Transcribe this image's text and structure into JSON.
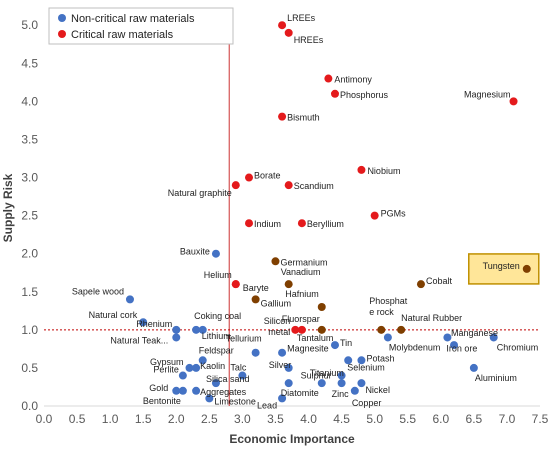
{
  "chart_data": {
    "type": "scatter",
    "xlabel": "Economic Importance",
    "ylabel": "Supply Risk",
    "xlim": [
      0.0,
      7.5
    ],
    "ylim": [
      0.0,
      5.2
    ],
    "x_ticks": [
      "0.0",
      "0.5",
      "1.0",
      "1.5",
      "2.0",
      "2.5",
      "3.0",
      "3.5",
      "4.0",
      "4.5",
      "5.0",
      "5.5",
      "6.0",
      "6.5",
      "7.0",
      "7.5"
    ],
    "y_ticks": [
      "0.0",
      "0.5",
      "1.0",
      "1.5",
      "2.0",
      "2.5",
      "3.0",
      "3.5",
      "4.0",
      "4.5",
      "5.0"
    ],
    "thresholds": {
      "x": 2.8,
      "y": 1.0
    },
    "grid": false,
    "legend_position": "top-left",
    "colors": {
      "Non-critical raw materials": "#4472c4",
      "Critical raw materials": "#e41a1c",
      "borderline": "#7f3f00",
      "highlight_fill": "#ffe699",
      "highlight_border": "#bf9000",
      "threshold": "#c00000"
    },
    "series": [
      {
        "name": "Non-critical raw materials",
        "points": [
          {
            "label": "Sapele wood",
            "x": 1.3,
            "y": 1.4
          },
          {
            "label": "Natural cork",
            "x": 1.5,
            "y": 1.1
          },
          {
            "label": "Rhenium",
            "x": 2.0,
            "y": 1.0
          },
          {
            "label": "Natural Teak...",
            "x": 2.0,
            "y": 0.9
          },
          {
            "label": "Coking coal",
            "x": 2.3,
            "y": 1.0
          },
          {
            "label": "Lithium",
            "x": 2.4,
            "y": 1.0
          },
          {
            "label": "Bauxite",
            "x": 2.6,
            "y": 2.0
          },
          {
            "label": "Feldspar",
            "x": 2.4,
            "y": 0.6
          },
          {
            "label": "Gypsum",
            "x": 2.2,
            "y": 0.5
          },
          {
            "label": "Perlite",
            "x": 2.1,
            "y": 0.4
          },
          {
            "label": "Kaolin",
            "x": 2.3,
            "y": 0.5
          },
          {
            "label": "Gold",
            "x": 2.0,
            "y": 0.2
          },
          {
            "label": "Bentonite",
            "x": 2.1,
            "y": 0.2
          },
          {
            "label": "Aggregates",
            "x": 2.3,
            "y": 0.2
          },
          {
            "label": "Limestone",
            "x": 2.5,
            "y": 0.1
          },
          {
            "label": "Silica sand",
            "x": 2.6,
            "y": 0.3
          },
          {
            "label": "Talc",
            "x": 3.0,
            "y": 0.4
          },
          {
            "label": "Tellurium",
            "x": 3.2,
            "y": 0.7
          },
          {
            "label": "Magnesite",
            "x": 3.6,
            "y": 0.7
          },
          {
            "label": "Silver",
            "x": 3.7,
            "y": 0.5
          },
          {
            "label": "Diatomite",
            "x": 3.7,
            "y": 0.3
          },
          {
            "label": "Lead",
            "x": 3.6,
            "y": 0.1
          },
          {
            "label": "Tin",
            "x": 4.4,
            "y": 0.8
          },
          {
            "label": "Titanium",
            "x": 4.2,
            "y": 0.3
          },
          {
            "label": "Sulphur",
            "x": 4.5,
            "y": 0.4
          },
          {
            "label": "Zinc",
            "x": 4.5,
            "y": 0.3
          },
          {
            "label": "Potash",
            "x": 4.8,
            "y": 0.6
          },
          {
            "label": "Selenium",
            "x": 4.6,
            "y": 0.6
          },
          {
            "label": "Nickel",
            "x": 4.8,
            "y": 0.3
          },
          {
            "label": "Copper",
            "x": 4.7,
            "y": 0.2
          },
          {
            "label": "Molybdenum",
            "x": 5.2,
            "y": 0.9
          },
          {
            "label": "Iron ore",
            "x": 6.1,
            "y": 0.9
          },
          {
            "label": "Manganese",
            "x": 6.2,
            "y": 0.8
          },
          {
            "label": "Chromium",
            "x": 6.8,
            "y": 0.9
          },
          {
            "label": "Aluminium",
            "x": 6.5,
            "y": 0.5
          }
        ]
      },
      {
        "name": "Critical raw materials",
        "points": [
          {
            "label": "LREEs",
            "x": 3.6,
            "y": 5.0
          },
          {
            "label": "HREEs",
            "x": 3.7,
            "y": 4.9
          },
          {
            "label": "Antimony",
            "x": 4.3,
            "y": 4.3
          },
          {
            "label": "Phosphorus",
            "x": 4.4,
            "y": 4.1
          },
          {
            "label": "Magnesium",
            "x": 7.1,
            "y": 4.0
          },
          {
            "label": "Bismuth",
            "x": 3.6,
            "y": 3.8
          },
          {
            "label": "Niobium",
            "x": 4.8,
            "y": 3.1
          },
          {
            "label": "Borate",
            "x": 3.1,
            "y": 3.0
          },
          {
            "label": "Scandium",
            "x": 3.7,
            "y": 2.9
          },
          {
            "label": "Natural graphite",
            "x": 2.9,
            "y": 2.9
          },
          {
            "label": "PGMs",
            "x": 5.0,
            "y": 2.5
          },
          {
            "label": "Indium",
            "x": 3.1,
            "y": 2.4
          },
          {
            "label": "Beryllium",
            "x": 3.9,
            "y": 2.4
          },
          {
            "label": "Helium",
            "x": 2.9,
            "y": 1.6
          },
          {
            "label": "Baryte",
            "x": 2.9,
            "y": 1.6
          },
          {
            "label": "Silicon metal",
            "x": 3.8,
            "y": 1.0
          },
          {
            "label": "Tantalum",
            "x": 3.9,
            "y": 1.0
          }
        ]
      },
      {
        "name": "",
        "points": [
          {
            "label": "Germanium",
            "x": 3.5,
            "y": 1.9
          },
          {
            "label": "Vanadium",
            "x": 3.7,
            "y": 1.6
          },
          {
            "label": "Gallium",
            "x": 3.2,
            "y": 1.4
          },
          {
            "label": "Hafnium",
            "x": 4.2,
            "y": 1.3
          },
          {
            "label": "Fluorspar",
            "x": 4.2,
            "y": 1.0
          },
          {
            "label": "Phosphate rock",
            "x": 5.1,
            "y": 1.0
          },
          {
            "label": "Natural Rubber",
            "x": 5.4,
            "y": 1.0
          },
          {
            "label": "Cobalt",
            "x": 5.7,
            "y": 1.6
          },
          {
            "label": "Tungsten",
            "x": 7.3,
            "y": 1.8
          }
        ]
      }
    ]
  }
}
